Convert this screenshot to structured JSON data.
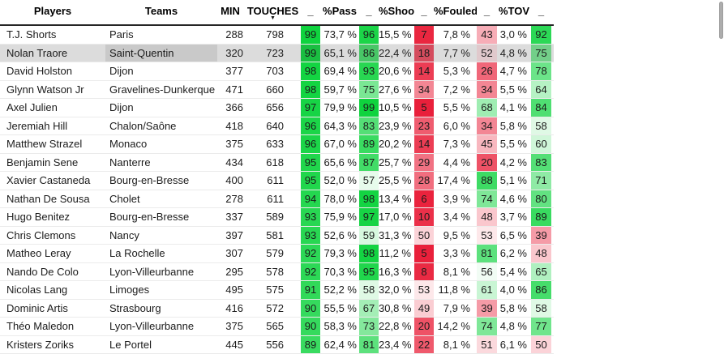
{
  "table": {
    "columns": [
      {
        "id": "players",
        "label": "Players",
        "type": "text"
      },
      {
        "id": "teams",
        "label": "Teams",
        "type": "text"
      },
      {
        "id": "min",
        "label": "MIN",
        "type": "num"
      },
      {
        "id": "touches",
        "label": "TOUCHES",
        "type": "num",
        "sorted": "desc"
      },
      {
        "id": "rating-overall",
        "label": "_",
        "type": "badge"
      },
      {
        "id": "pct-pass",
        "label": "%Pass",
        "type": "pct"
      },
      {
        "id": "rating-pass",
        "label": "_",
        "type": "badge"
      },
      {
        "id": "pct-shoot",
        "label": "%Shoot",
        "type": "pct"
      },
      {
        "id": "rating-shoot",
        "label": "_",
        "type": "badge"
      },
      {
        "id": "pct-fouled",
        "label": "%Fouled",
        "type": "pct"
      },
      {
        "id": "rating-fouled",
        "label": "_",
        "type": "badge"
      },
      {
        "id": "pct-tov",
        "label": "%TOV",
        "type": "pct"
      },
      {
        "id": "rating-tov",
        "label": "_",
        "type": "badge"
      }
    ],
    "sort_icon": "▼",
    "rows": [
      {
        "values": [
          "T.J. Shorts",
          "Paris",
          "288",
          "798",
          "99",
          "73,7 %",
          "96",
          "15,5 %",
          "7",
          "7,8 %",
          "43",
          "3,0 %",
          "92"
        ]
      },
      {
        "values": [
          "Nolan Traore",
          "Saint-Quentin",
          "320",
          "723",
          "99",
          "65,1 %",
          "86",
          "22,4 %",
          "18",
          "7,7 %",
          "52",
          "4,8 %",
          "75"
        ]
      },
      {
        "values": [
          "David Holston",
          "Dijon",
          "377",
          "703",
          "98",
          "69,4 %",
          "93",
          "20,6 %",
          "14",
          "5,3 %",
          "26",
          "4,7 %",
          "78"
        ]
      },
      {
        "values": [
          "Glynn Watson Jr",
          "Gravelines-Dunkerque",
          "471",
          "660",
          "98",
          "59,7 %",
          "75",
          "27,6 %",
          "34",
          "7,2 %",
          "34",
          "5,5 %",
          "64"
        ]
      },
      {
        "values": [
          "Axel Julien",
          "Dijon",
          "366",
          "656",
          "97",
          "79,9 %",
          "99",
          "10,5 %",
          "5",
          "5,5 %",
          "68",
          "4,1 %",
          "84"
        ]
      },
      {
        "values": [
          "Jeremiah Hill",
          "Chalon/Saône",
          "418",
          "640",
          "96",
          "64,3 %",
          "83",
          "23,9 %",
          "23",
          "6,0 %",
          "34",
          "5,8 %",
          "58"
        ]
      },
      {
        "values": [
          "Matthew Strazel",
          "Monaco",
          "375",
          "633",
          "96",
          "67,0 %",
          "89",
          "20,2 %",
          "14",
          "7,3 %",
          "45",
          "5,5 %",
          "60"
        ]
      },
      {
        "values": [
          "Benjamin Sene",
          "Nanterre",
          "434",
          "618",
          "95",
          "65,6 %",
          "87",
          "25,7 %",
          "29",
          "4,4 %",
          "20",
          "4,2 %",
          "83"
        ]
      },
      {
        "values": [
          "Xavier Castaneda",
          "Bourg-en-Bresse",
          "400",
          "611",
          "95",
          "52,0 %",
          "57",
          "25,5 %",
          "28",
          "17,4 %",
          "88",
          "5,1 %",
          "71"
        ]
      },
      {
        "values": [
          "Nathan De Sousa",
          "Cholet",
          "278",
          "611",
          "94",
          "78,0 %",
          "98",
          "13,4 %",
          "6",
          "3,9 %",
          "74",
          "4,6 %",
          "80"
        ]
      },
      {
        "values": [
          "Hugo Benitez",
          "Bourg-en-Bresse",
          "337",
          "589",
          "93",
          "75,9 %",
          "97",
          "17,0 %",
          "10",
          "3,4 %",
          "48",
          "3,7 %",
          "89"
        ]
      },
      {
        "values": [
          "Chris Clemons",
          "Nancy",
          "397",
          "581",
          "93",
          "52,6 %",
          "59",
          "31,3 %",
          "50",
          "9,5 %",
          "53",
          "6,5 %",
          "39"
        ]
      },
      {
        "values": [
          "Matheo Leray",
          "La Rochelle",
          "307",
          "579",
          "92",
          "79,3 %",
          "98",
          "11,2 %",
          "5",
          "3,3 %",
          "81",
          "6,2 %",
          "48"
        ]
      },
      {
        "values": [
          "Nando De Colo",
          "Lyon-Villeurbanne",
          "295",
          "578",
          "92",
          "70,3 %",
          "95",
          "16,3 %",
          "8",
          "8,1 %",
          "56",
          "5,4 %",
          "65"
        ]
      },
      {
        "values": [
          "Nicolas Lang",
          "Limoges",
          "495",
          "575",
          "91",
          "52,2 %",
          "58",
          "32,0 %",
          "53",
          "11,8 %",
          "61",
          "4,0 %",
          "86"
        ]
      },
      {
        "values": [
          "Dominic Artis",
          "Strasbourg",
          "416",
          "572",
          "90",
          "55,5 %",
          "67",
          "30,8 %",
          "49",
          "7,9 %",
          "39",
          "5,8 %",
          "58"
        ]
      },
      {
        "values": [
          "Théo Maledon",
          "Lyon-Villeurbanne",
          "375",
          "565",
          "90",
          "58,3 %",
          "73",
          "22,8 %",
          "20",
          "14,2 %",
          "74",
          "4,8 %",
          "77"
        ]
      },
      {
        "values": [
          "Kristers Zoriks",
          "Le Portel",
          "445",
          "556",
          "89",
          "62,4 %",
          "81",
          "23,4 %",
          "22",
          "8,1 %",
          "51",
          "6,1 %",
          "50"
        ]
      }
    ],
    "selection": {
      "row_index": 1,
      "row_player": "Nolan Traore",
      "selected_col_id": "teams"
    }
  },
  "style": {
    "scale_green": "#0BD23B",
    "scale_red": "#E8112D",
    "scale_neutral": "#FFFFFF",
    "selected_row_bg": "#DCDCDC",
    "selected_cell_bg": "#C9C9C9",
    "header_rule": "#252525",
    "row_rule": "#EBEBEB",
    "scrollbar_thumb": "#ADADAD"
  }
}
